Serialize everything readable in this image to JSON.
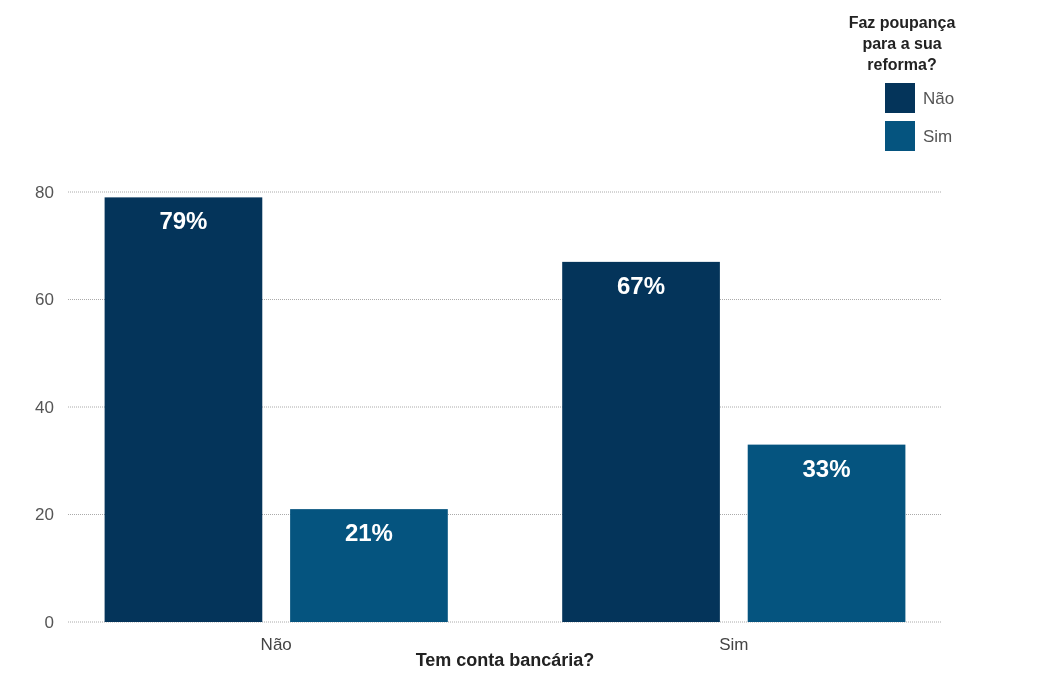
{
  "chart_data": {
    "type": "bar",
    "xlabel": "Tem conta bancária?",
    "legend_title": "Faz poupança para a sua reforma?",
    "categories": [
      "Não",
      "Sim"
    ],
    "series": [
      {
        "name": "Não",
        "color": "#04345a",
        "values": [
          79,
          67
        ],
        "value_labels": [
          "79%",
          "67%"
        ]
      },
      {
        "name": "Sim",
        "color": "#05547f",
        "values": [
          21,
          33
        ],
        "value_labels": [
          "21%",
          "33%"
        ]
      }
    ],
    "ylim": [
      0,
      80
    ],
    "yticks": [
      0,
      20,
      40,
      60,
      80
    ],
    "grid": "y",
    "legend": "top right"
  }
}
